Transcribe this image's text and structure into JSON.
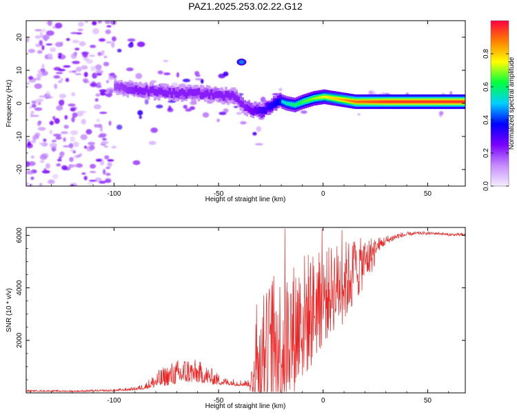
{
  "page_title": "PAZ1.2025.253.02.22.G12",
  "chart_data": [
    {
      "type": "heatmap",
      "title": "PAZ1.2025.253.02.22.G12",
      "xlabel": "Height of straight line (km)",
      "ylabel": "Frequency (Hz)",
      "xlim": [
        -142,
        68
      ],
      "ylim": [
        -25,
        25
      ],
      "xticks": [
        -100,
        -50,
        0,
        50
      ],
      "yticks": [
        -20,
        -10,
        0,
        10,
        20
      ],
      "colorbar": {
        "label": "Normalized spectral amplitude",
        "range": [
          0.0,
          1.0
        ],
        "ticks": [
          0.0,
          0.2,
          0.4,
          0.6,
          0.8
        ],
        "tick_labels": [
          "0.0",
          "0.2",
          "0.4",
          "0.6",
          "0.8"
        ],
        "colors": [
          "#f5ecff",
          "#c58cff",
          "#7a00ff",
          "#0000ff",
          "#00d0ff",
          "#00ff40",
          "#ffff00",
          "#ff8000",
          "#ff0040"
        ]
      },
      "ridge": {
        "description": "dominant frequency track",
        "x": [
          -100,
          -90,
          -80,
          -70,
          -60,
          -50,
          -42,
          -38,
          -34,
          -30,
          -26,
          -22,
          -18,
          -14,
          -10,
          -5,
          0,
          5,
          10,
          15,
          30,
          50,
          68
        ],
        "y": [
          5,
          4,
          3.5,
          3,
          3,
          2.5,
          2,
          -1,
          -2,
          -2.5,
          -1,
          1,
          0,
          -0.5,
          0.5,
          1.5,
          2,
          1.5,
          1,
          0.5,
          0.5,
          0.5,
          0.5
        ],
        "amplitude": [
          0.25,
          0.3,
          0.3,
          0.3,
          0.3,
          0.3,
          0.3,
          0.3,
          0.35,
          0.4,
          0.45,
          0.5,
          0.55,
          0.6,
          0.65,
          0.7,
          0.75,
          0.8,
          0.85,
          0.9,
          0.95,
          0.95,
          0.95
        ]
      },
      "isolated_feature": {
        "x": -39,
        "y": 12.5,
        "amplitude": 0.45
      }
    },
    {
      "type": "line",
      "xlabel": "Height of straight line (km)",
      "ylabel": "SNR (10 * v/v)",
      "xlim": [
        -142,
        68
      ],
      "ylim": [
        0,
        6300
      ],
      "xticks": [
        -100,
        -50,
        0,
        50
      ],
      "yticks": [
        2000,
        4000,
        6000
      ],
      "series": [
        {
          "name": "SNR",
          "color": "#ee2222",
          "envelope": {
            "x": [
              -142,
              -120,
              -100,
              -90,
              -85,
              -80,
              -72,
              -65,
              -58,
              -52,
              -48,
              -40,
              -35,
              -32,
              -28,
              -25,
              -20,
              -15,
              -10,
              -5,
              0,
              5,
              10,
              15,
              20,
              25,
              30,
              35,
              40,
              45,
              50,
              55,
              60,
              68
            ],
            "base": [
              60,
              50,
              70,
              120,
              180,
              300,
              450,
              550,
              500,
              400,
              350,
              300,
              280,
              900,
              1200,
              1500,
              1800,
              2200,
              2800,
              3200,
              3600,
              4000,
              4200,
              4600,
              5000,
              5400,
              5700,
              5900,
              6000,
              6050,
              6050,
              6050,
              6000,
              6000
            ],
            "amp": [
              60,
              60,
              80,
              120,
              250,
              600,
              900,
              1000,
              800,
              550,
              300,
              250,
              250,
              1500,
              2500,
              3000,
              2800,
              2700,
              2600,
              2200,
              1800,
              1700,
              1600,
              1300,
              900,
              600,
              350,
              250,
              150,
              120,
              100,
              100,
              100,
              100
            ]
          }
        }
      ]
    }
  ]
}
